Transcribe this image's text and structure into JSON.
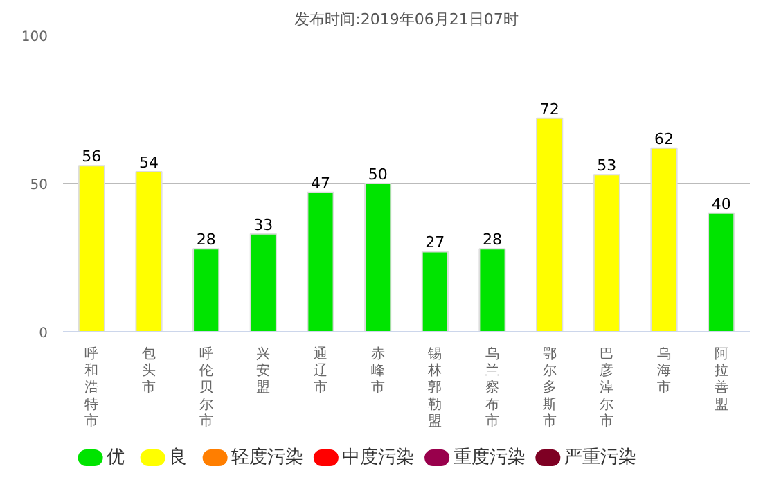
{
  "chart_data": {
    "type": "bar",
    "title": "发布时间:2019年06月21日07时",
    "categories": [
      "呼和浩特市",
      "包头市",
      "呼伦贝尔市",
      "兴安盟",
      "通辽市",
      "赤峰市",
      "锡林郭勒盟",
      "乌兰察布市",
      "鄂尔多斯市",
      "巴彦淖尔市",
      "乌海市",
      "阿拉善盟"
    ],
    "series": [
      {
        "name": "优",
        "color": "#00e400",
        "values": [
          null,
          null,
          28,
          33,
          47,
          50,
          27,
          28,
          null,
          null,
          null,
          40
        ]
      },
      {
        "name": "良",
        "color": "#ffff00",
        "values": [
          56,
          54,
          null,
          null,
          null,
          null,
          null,
          null,
          72,
          53,
          62,
          null
        ]
      },
      {
        "name": "轻度污染",
        "color": "#ff7e00",
        "values": [
          null,
          null,
          null,
          null,
          null,
          null,
          null,
          null,
          null,
          null,
          null,
          null
        ]
      },
      {
        "name": "中度污染",
        "color": "#ff0000",
        "values": [
          null,
          null,
          null,
          null,
          null,
          null,
          null,
          null,
          null,
          null,
          null,
          null
        ]
      },
      {
        "name": "重度污染",
        "color": "#99004c",
        "values": [
          null,
          null,
          null,
          null,
          null,
          null,
          null,
          null,
          null,
          null,
          null,
          null
        ]
      },
      {
        "name": "严重污染",
        "color": "#7e0023",
        "values": [
          null,
          null,
          null,
          null,
          null,
          null,
          null,
          null,
          null,
          null,
          null,
          null
        ]
      }
    ],
    "ylim": [
      0,
      100
    ],
    "yticks": [
      0,
      50,
      100
    ],
    "grid": "y",
    "data_labels": true,
    "legend": "bottom"
  }
}
